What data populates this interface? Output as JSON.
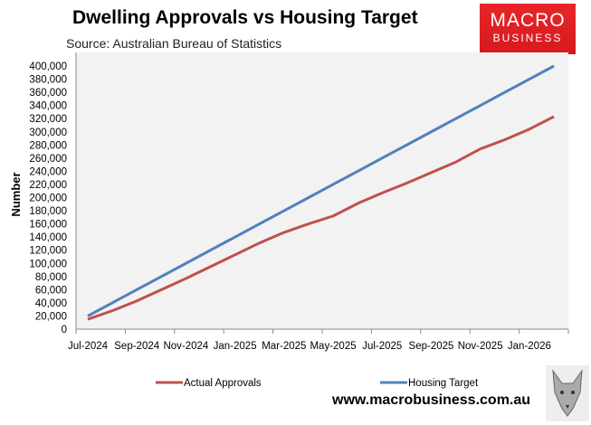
{
  "title": "Dwelling Approvals vs Housing Target",
  "subtitle": "Source: Australian Bureau of Statistics",
  "logo": {
    "line1": "MACRO",
    "line2": "BUSINESS"
  },
  "url": "www.macrobusiness.com.au",
  "chart_data": {
    "type": "line",
    "ylabel": "Number",
    "xlabel": "",
    "ylim": [
      0,
      400000
    ],
    "yticks": [
      "0",
      "20,000",
      "40,000",
      "60,000",
      "80,000",
      "100,000",
      "120,000",
      "140,000",
      "160,000",
      "180,000",
      "200,000",
      "220,000",
      "240,000",
      "260,000",
      "280,000",
      "300,000",
      "320,000",
      "340,000",
      "360,000",
      "380,000",
      "400,000"
    ],
    "x": [
      "Jul-2024",
      "Aug-2024",
      "Sep-2024",
      "Oct-2024",
      "Nov-2024",
      "Dec-2024",
      "Jan-2025",
      "Feb-2025",
      "Mar-2025",
      "Apr-2025",
      "May-2025",
      "Jun-2025",
      "Jul-2025",
      "Aug-2025",
      "Sep-2025",
      "Oct-2025",
      "Nov-2025",
      "Dec-2025",
      "Jan-2026",
      "Feb-2026"
    ],
    "xtick_labels": [
      "Jul-2024",
      "Sep-2024",
      "Nov-2024",
      "Jan-2025",
      "Mar-2025",
      "May-2025",
      "Jul-2025",
      "Sep-2025",
      "Nov-2025",
      "Jan-2026"
    ],
    "grid": false,
    "legend": "bottom",
    "series": [
      {
        "name": "Actual Approvals",
        "color": "#c0504d",
        "values": [
          15000,
          28000,
          43000,
          60000,
          77000,
          95000,
          113000,
          131000,
          147000,
          160000,
          172000,
          191000,
          207000,
          222000,
          238000,
          254000,
          274000,
          288000,
          304000,
          323000
        ]
      },
      {
        "name": "Housing Target",
        "color": "#4f81bd",
        "values": [
          20000,
          40000,
          60000,
          80000,
          100000,
          120000,
          140000,
          160000,
          180000,
          200000,
          220000,
          240000,
          260000,
          280000,
          300000,
          320000,
          340000,
          360000,
          380000,
          400000
        ]
      }
    ]
  }
}
